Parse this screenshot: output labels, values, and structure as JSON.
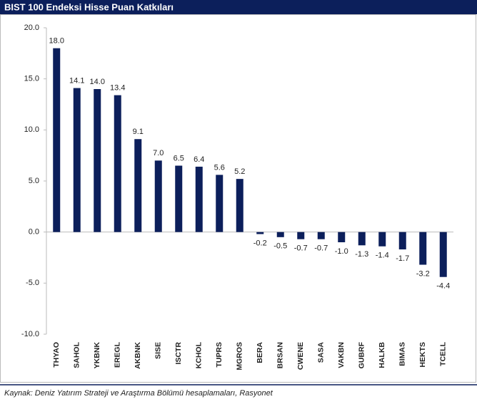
{
  "chart_data": {
    "type": "bar",
    "title": "BIST 100 Endeksi Hisse Puan Katkıları",
    "categories": [
      "THYAO",
      "SAHOL",
      "YKBNK",
      "EREGL",
      "AKBNK",
      "SISE",
      "ISCTR",
      "KCHOL",
      "TUPRS",
      "MGROS",
      "BERA",
      "BRSAN",
      "CWENE",
      "SASA",
      "VAKBN",
      "GUBRF",
      "HALKB",
      "BIMAS",
      "HEKTS",
      "TCELL"
    ],
    "values": [
      18.0,
      14.1,
      14.0,
      13.4,
      9.1,
      7.0,
      6.5,
      6.4,
      5.6,
      5.2,
      -0.2,
      -0.5,
      -0.7,
      -0.7,
      -1.0,
      -1.3,
      -1.4,
      -1.7,
      -3.2,
      -4.4
    ],
    "value_labels": [
      "18.0",
      "14.1",
      "14.0",
      "13.4",
      "9.1",
      "7.0",
      "6.5",
      "6.4",
      "5.6",
      "5.2",
      "-0.2",
      "-0.5",
      "-0.7",
      "-0.7",
      "-1.0",
      "-1.3",
      "-1.4",
      "-1.7",
      "-3.2",
      "-4.4"
    ],
    "color": "#0c1f5b",
    "ylim": [
      -10,
      20
    ],
    "yticks": [
      {
        "value": -10,
        "label": "-10.0"
      },
      {
        "value": -5,
        "label": "-5.0"
      },
      {
        "value": 0,
        "label": "0.0"
      },
      {
        "value": 5,
        "label": "5.0"
      },
      {
        "value": 10,
        "label": "10.0"
      },
      {
        "value": 15,
        "label": "15.0"
      },
      {
        "value": 20,
        "label": "20.0"
      }
    ],
    "grid": false,
    "source": "Kaynak: Deniz Yatırım Strateji ve Araştırma Bölümü hesaplamaları, Rasyonet"
  }
}
